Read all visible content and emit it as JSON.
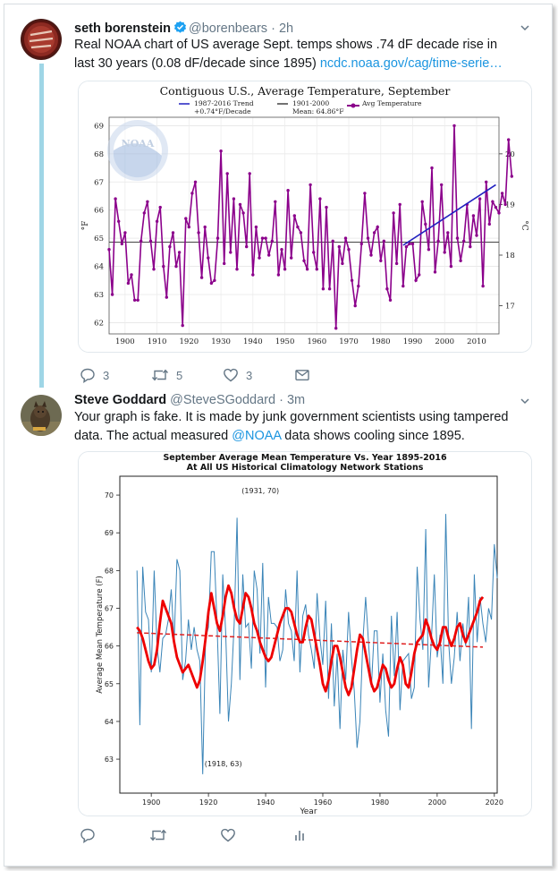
{
  "tweets": [
    {
      "author": {
        "name": "seth borenstein",
        "handle": "@borenbears",
        "time": "2h",
        "verified": true
      },
      "text": "Real NOAA chart of US average Sept. temps shows .74 dF decade rise in last 30 years (0.08 dF/decade since 1895)",
      "link_text": "ncdc.noaa.gov/cag/time-serie…",
      "actions": {
        "reply_count": "3",
        "retweet_count": "5",
        "like_count": "3"
      }
    },
    {
      "author": {
        "name": "Steve Goddard",
        "handle": "@SteveSGoddard",
        "time": "3m"
      },
      "text_before": "Your graph is fake. It is made by junk government scientists using tampered data. The actual measured ",
      "mention": "@NOAA",
      "text_after": " data shows cooling since 1895."
    }
  ],
  "chart_data": [
    {
      "type": "line",
      "title": "Contiguous U.S., Average Temperature, September",
      "legend": {
        "placement": "top",
        "entries": [
          {
            "line1": "1987-2016 Trend",
            "line2": "+0.74°F/Decade",
            "color": "#2020c0"
          },
          {
            "line1": "1901-2000",
            "line2": "Mean: 64.86°F",
            "color": "#444444"
          },
          {
            "line1": "Avg Temperature",
            "line2": "",
            "color": "#8b008b"
          }
        ]
      },
      "ylabel": "°F",
      "y2label": "°C",
      "xlim": [
        1895,
        2017
      ],
      "ylim": [
        61.6,
        69.3
      ],
      "xticks": [
        "1900",
        "1910",
        "1920",
        "1930",
        "1940",
        "1950",
        "1960",
        "1970",
        "1980",
        "1990",
        "2000",
        "2010"
      ],
      "yticks": [
        "62",
        "63",
        "64",
        "65",
        "66",
        "67",
        "68",
        "69"
      ],
      "y2ticks": [
        "17",
        "18",
        "19",
        "20"
      ],
      "mean": 64.86,
      "trend": {
        "x": [
          1987,
          2016
        ],
        "y": [
          64.75,
          66.9
        ]
      },
      "colors": {
        "series": "#8b008b",
        "trend": "#2020c0",
        "mean": "#444444"
      },
      "x_start": 1895,
      "values": [
        64.6,
        63.0,
        66.4,
        65.6,
        64.8,
        65.2,
        63.4,
        63.7,
        62.8,
        62.8,
        64.9,
        65.9,
        66.3,
        64.9,
        63.9,
        65.6,
        66.1,
        64.0,
        62.9,
        64.7,
        65.2,
        64.0,
        64.5,
        61.9,
        65.7,
        65.4,
        66.6,
        67.0,
        65.2,
        63.6,
        65.4,
        64.3,
        63.4,
        63.5,
        65.0,
        68.1,
        64.1,
        67.3,
        64.5,
        66.4,
        63.9,
        66.2,
        65.9,
        64.7,
        67.3,
        63.7,
        65.4,
        64.3,
        65.0,
        65.0,
        64.4,
        64.9,
        66.3,
        63.7,
        64.6,
        63.9,
        66.7,
        64.3,
        65.8,
        65.4,
        65.2,
        64.2,
        63.9,
        66.9,
        64.5,
        63.9,
        66.4,
        63.2,
        66.1,
        63.2,
        64.9,
        61.8,
        64.7,
        64.1,
        65.0,
        64.6,
        63.5,
        62.6,
        63.3,
        64.8,
        66.6,
        65.0,
        64.4,
        65.2,
        65.4,
        64.2,
        64.9,
        63.2,
        62.8,
        65.9,
        64.1,
        66.2,
        63.3,
        64.7,
        64.8,
        64.8,
        63.5,
        63.7,
        66.3,
        65.5,
        64.6,
        67.5,
        63.8,
        64.9,
        66.9,
        64.5,
        65.2,
        64.0,
        69.0,
        65.0,
        64.2,
        64.9,
        66.2,
        64.7,
        65.8,
        65.1,
        66.4,
        63.3,
        67.0,
        65.5,
        66.3,
        66.1,
        65.9,
        66.6,
        66.2,
        68.5,
        67.2
      ],
      "logo_text": "NOAA"
    },
    {
      "type": "line",
      "title": "September Average Mean Temperature Vs. Year 1895-2016",
      "subtitle": "At All US Historical Climatology Network Stations",
      "xlabel": "Year",
      "ylabel": "Average Mean Temperature (F)",
      "xlim": [
        1889,
        2021
      ],
      "ylim": [
        62.1,
        70.5
      ],
      "xticks": [
        "1900",
        "1920",
        "1940",
        "1960",
        "1980",
        "2000",
        "2020"
      ],
      "yticks": [
        "63",
        "64",
        "65",
        "66",
        "67",
        "68",
        "69",
        "70"
      ],
      "annotations": [
        {
          "text": "(1931, 70)",
          "x": 1931,
          "y": 70
        },
        {
          "text": "(1918, 63)",
          "x": 1918,
          "y": 63
        }
      ],
      "trend": {
        "x": [
          1895,
          2016
        ],
        "y": [
          66.35,
          65.97
        ]
      },
      "colors": {
        "series": "#3b85b8",
        "smooth": "#ee0000",
        "trend": "#e02020"
      },
      "x_start": 1895,
      "values": [
        68.0,
        63.9,
        68.1,
        66.9,
        66.7,
        65.3,
        68.0,
        66.0,
        65.3,
        66.2,
        66.3,
        66.7,
        67.5,
        66.1,
        68.3,
        68.0,
        65.1,
        65.6,
        66.7,
        65.9,
        66.5,
        65.9,
        65.6,
        62.6,
        66.2,
        66.5,
        68.5,
        68.5,
        66.6,
        64.2,
        67.9,
        66.4,
        64.0,
        65.0,
        66.6,
        69.4,
        65.1,
        67.9,
        66.5,
        66.6,
        65.4,
        68.0,
        67.5,
        65.8,
        68.2,
        64.9,
        67.3,
        66.6,
        66.6,
        66.5,
        65.6,
        65.9,
        67.5,
        66.6,
        66.4,
        65.6,
        68.0,
        65.3,
        66.8,
        67.1,
        66.3,
        65.9,
        65.4,
        67.4,
        66.2,
        65.5,
        67.2,
        64.6,
        66.6,
        64.4,
        65.8,
        63.8,
        65.9,
        65.1,
        66.9,
        65.7,
        64.8,
        63.3,
        64.0,
        66.1,
        67.3,
        66.1,
        64.9,
        66.4,
        66.4,
        64.5,
        65.8,
        64.3,
        63.6,
        66.8,
        65.2,
        66.9,
        64.3,
        65.6,
        65.7,
        65.8,
        64.6,
        64.9,
        68.1,
        66.7,
        65.9,
        69.1,
        64.9,
        66.2,
        67.9,
        65.7,
        66.3,
        65.0,
        69.5,
        66.1,
        65.0,
        65.7,
        66.9,
        65.6,
        66.6,
        66.0,
        67.3,
        63.8,
        67.9,
        66.1,
        67.3,
        66.6,
        66.1,
        67.0,
        66.7,
        68.7,
        67.8
      ],
      "smooth": [
        66.5,
        66.4,
        66.2,
        65.9,
        65.6,
        65.4,
        65.5,
        65.9,
        66.6,
        67.2,
        67.0,
        66.8,
        66.6,
        66.1,
        65.7,
        65.5,
        65.3,
        65.4,
        65.5,
        65.3,
        65.1,
        64.9,
        65.1,
        65.6,
        66.2,
        66.9,
        67.4,
        67.0,
        66.6,
        66.4,
        66.8,
        67.3,
        67.6,
        67.4,
        67.0,
        66.7,
        66.6,
        67.0,
        67.4,
        67.3,
        67.0,
        66.6,
        66.4,
        66.1,
        65.9,
        65.7,
        65.6,
        65.7,
        66.0,
        66.3,
        66.6,
        66.8,
        67.0,
        67.0,
        66.9,
        66.6,
        66.3,
        66.1,
        66.1,
        66.5,
        66.8,
        66.7,
        66.3,
        65.9,
        65.5,
        65.0,
        64.8,
        65.1,
        65.6,
        66.0,
        66.0,
        65.7,
        65.3,
        64.9,
        64.7,
        64.9,
        65.4,
        65.9,
        66.3,
        66.2,
        65.8,
        65.4,
        65.0,
        64.8,
        64.9,
        65.2,
        65.5,
        65.4,
        65.1,
        64.9,
        65.0,
        65.4,
        65.7,
        65.5,
        65.0,
        64.9,
        65.3,
        65.8,
        66.1,
        66.2,
        66.3,
        66.7,
        66.5,
        66.2,
        66.0,
        65.9,
        66.1,
        66.5,
        66.5,
        66.2,
        66.0,
        66.2,
        66.5,
        66.6,
        66.3,
        66.1,
        66.3,
        66.5,
        66.7,
        66.9,
        67.2,
        67.3
      ]
    }
  ]
}
